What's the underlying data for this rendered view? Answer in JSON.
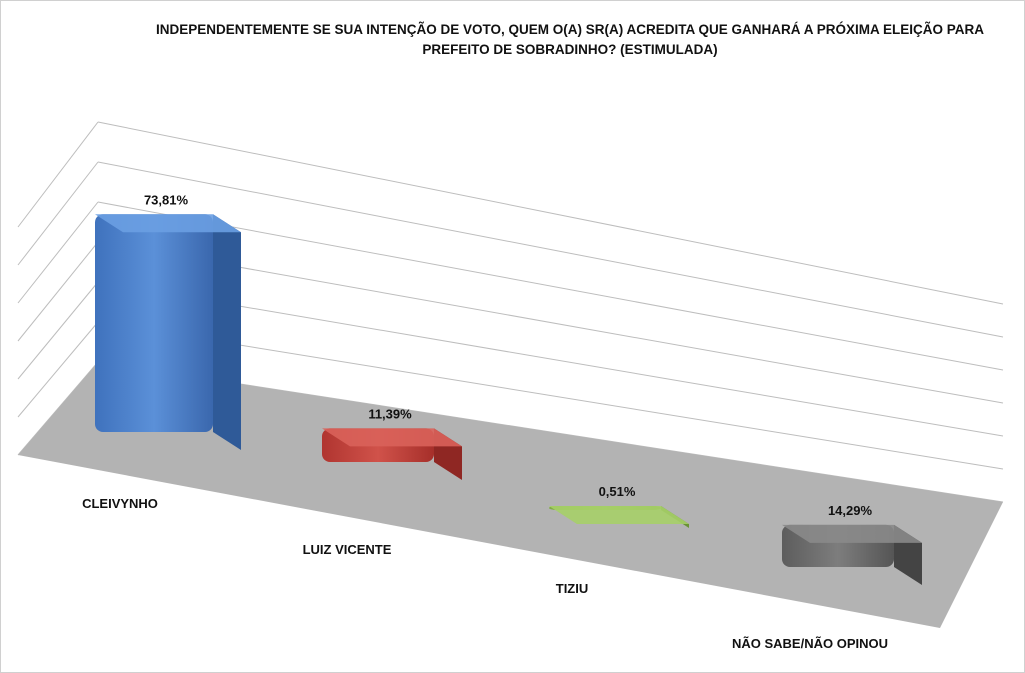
{
  "title": "INDEPENDENTEMENTE SE SUA INTENÇÃO DE VOTO, QUEM O(A) SR(A) ACREDITA QUE GANHARÁ A PRÓXIMA ELEIÇÃO PARA PREFEITO DE SOBRADINHO? (ESTIMULADA)",
  "chart_data": {
    "type": "bar",
    "title": "INDEPENDENTEMENTE SE SUA INTENÇÃO DE VOTO, QUEM O(A) SR(A) ACREDITA QUE GANHARÁ A PRÓXIMA ELEIÇÃO PARA PREFEITO DE SOBRADINHO? (ESTIMULADA)",
    "categories": [
      "CLEIVYNHO",
      "LUIZ VICENTE",
      "TIZIU",
      "NÃO SABE/NÃO OPINOU"
    ],
    "values": [
      73.81,
      11.39,
      0.51,
      14.29
    ],
    "value_labels": [
      "73,81%",
      "11,39%",
      "0,51%",
      "14,29%"
    ],
    "colors": [
      "#4a7fc9",
      "#c0403a",
      "#8db850",
      "#6e6e6e"
    ],
    "unit": "%",
    "ylim": [
      0,
      80
    ],
    "grid": true,
    "legend": "none",
    "style": "3d-perspective"
  }
}
